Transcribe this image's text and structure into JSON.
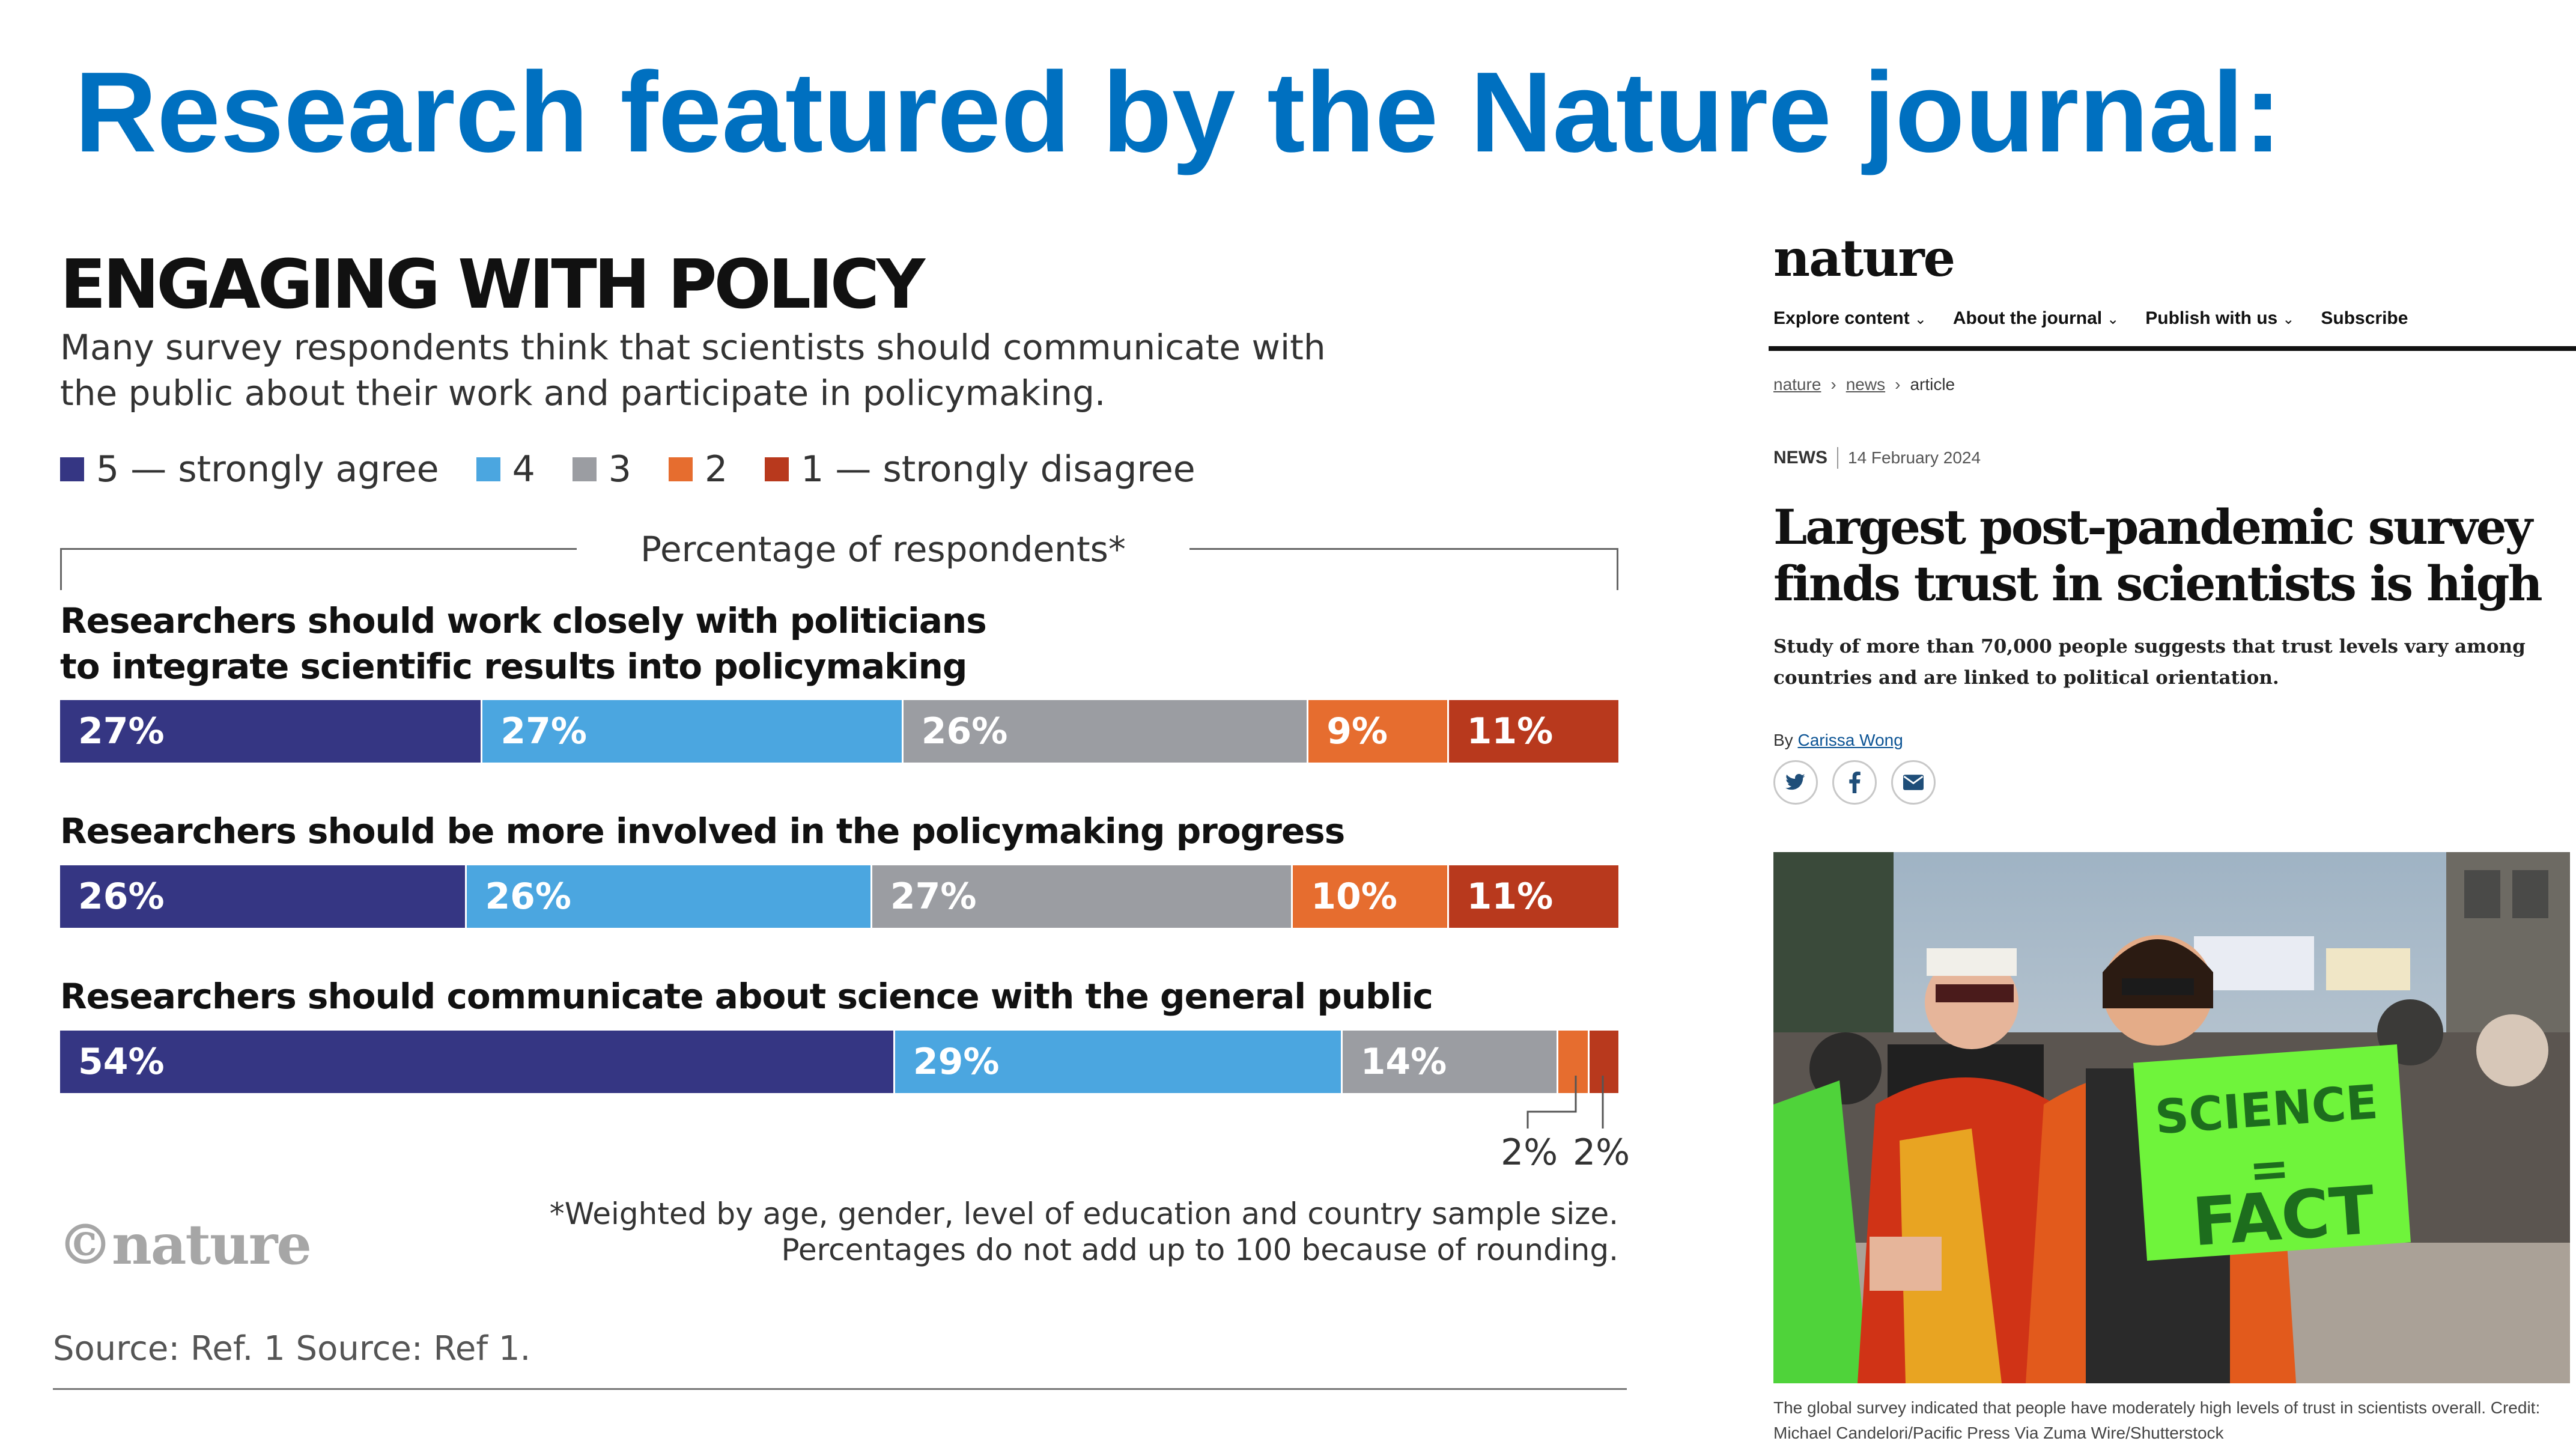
{
  "slide": {
    "title": "Research featured by the Nature journal:"
  },
  "chart_data": {
    "type": "bar",
    "orientation": "horizontal-stacked-100",
    "title": "ENGAGING WITH POLICY",
    "subtitle": "Many survey respondents think that scientists should communicate with the public about their work and participate in policymaking.",
    "axis_title": "Percentage of respondents*",
    "legend_placement": "top-left",
    "grid": false,
    "series": [
      {
        "name": "5 — strongly agree",
        "color": "#353683"
      },
      {
        "name": "4",
        "color": "#4ba6e0"
      },
      {
        "name": "3",
        "color": "#9b9da2"
      },
      {
        "name": "2",
        "color": "#e66d2f"
      },
      {
        "name": "1 — strongly disagree",
        "color": "#b8391d"
      }
    ],
    "categories": [
      "Researchers should work closely with politicians to integrate scientific results into policymaking",
      "Researchers should be more involved in the policymaking progress",
      "Researchers should communicate about science with the general public"
    ],
    "rows": [
      {
        "label_lines": [
          "Researchers should work closely with politicians",
          "to integrate scientific results into policymaking"
        ],
        "values": [
          27,
          27,
          26,
          9,
          11
        ],
        "labels": [
          "27%",
          "27%",
          "26%",
          "9%",
          "11%"
        ]
      },
      {
        "label_lines": [
          "Researchers should be more involved in the policymaking progress"
        ],
        "values": [
          26,
          26,
          27,
          10,
          11
        ],
        "labels": [
          "26%",
          "26%",
          "27%",
          "10%",
          "11%"
        ]
      },
      {
        "label_lines": [
          "Researchers should communicate about science with the general public"
        ],
        "values": [
          54,
          29,
          14,
          2,
          2
        ],
        "labels": [
          "54%",
          "29%",
          "14%",
          "",
          ""
        ]
      }
    ],
    "callouts": [
      "2%",
      "2%"
    ],
    "footnote_lines": [
      "*Weighted by age, gender, level of education and country sample size.",
      "Percentages do not add up to 100 because of rounding."
    ],
    "credit": "©nature",
    "source": "Source: Ref. 1  Source: Ref 1."
  },
  "article": {
    "logo": "nature",
    "nav": [
      {
        "label": "Explore content",
        "chevron": true
      },
      {
        "label": "About the journal",
        "chevron": true
      },
      {
        "label": "Publish with us",
        "chevron": true
      },
      {
        "label": "Subscribe",
        "chevron": false
      }
    ],
    "breadcrumb": [
      "nature",
      "news",
      "article"
    ],
    "type": "NEWS",
    "date": "14 February 2024",
    "headline": "Largest post-pandemic survey finds trust in scientists is high",
    "standfirst": "Study of more than 70,000 people suggests that trust levels vary among countries and are linked to political orientation.",
    "byline_prefix": "By ",
    "author": "Carissa Wong",
    "share_icons": [
      "twitter-icon",
      "facebook-icon",
      "email-icon"
    ],
    "caption": "The global survey indicated that people have moderately high levels of trust in scientists overall.  Credit: Michael Candelori/Pacific Press Via Zuma Wire/Shutterstock",
    "photo_signs": [
      "SCIENCE",
      "=",
      "FACT"
    ]
  }
}
